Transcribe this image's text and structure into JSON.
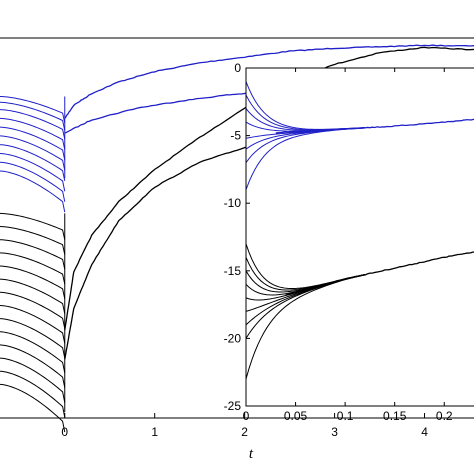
{
  "chart_data": [
    {
      "id": "main",
      "type": "line",
      "xlabel": "t",
      "ylabel": "",
      "xlim": [
        -0.72,
        4.55
      ],
      "ylim": [
        -25,
        1
      ],
      "grid": false,
      "xticks": [
        0,
        1,
        2,
        3,
        4
      ],
      "xtick_labels": [
        "0",
        "1",
        "2",
        "3",
        "4"
      ],
      "colors": {
        "blue": "#2020c8",
        "black": "#000000"
      },
      "negative_t_starts_blue": [
        -3.0,
        -3.4,
        -3.9,
        -4.5,
        -5.1,
        -5.7,
        -6.3,
        -6.9,
        -7.5,
        -8.1
      ],
      "negative_t_starts_black": [
        -11.0,
        -11.9,
        -12.8,
        -13.7,
        -14.6,
        -15.5,
        -16.4,
        -17.3,
        -18.2,
        -19.1,
        -20.0,
        -20.9,
        -21.8,
        -22.7
      ],
      "positive_t_blue_upper": {
        "x": [
          0,
          0.1,
          0.3,
          0.6,
          1.0,
          1.5,
          2.0,
          2.5,
          3.0,
          3.5,
          4.0,
          4.55
        ],
        "y": [
          -4.5,
          -3.6,
          -2.8,
          -2.0,
          -1.3,
          -0.7,
          -0.3,
          0.1,
          0.3,
          0.4,
          0.5,
          0.45
        ]
      },
      "positive_t_blue_lower": {
        "x": [
          0,
          0.3,
          0.8,
          1.3,
          1.8,
          2.2
        ],
        "y": [
          -5.5,
          -4.6,
          -3.8,
          -3.3,
          -2.9,
          -2.7
        ]
      },
      "positive_t_black_upper": {
        "x": [
          0,
          0.1,
          0.3,
          0.6,
          1.0,
          1.5,
          2.0,
          2.5,
          3.0,
          3.5,
          4.0,
          4.55
        ],
        "y": [
          -19.0,
          -15.0,
          -12.5,
          -10.2,
          -8.0,
          -5.8,
          -3.8,
          -2.0,
          -0.8,
          0.0,
          0.35,
          0.2
        ]
      },
      "positive_t_black_lower": {
        "x": [
          0,
          0.1,
          0.3,
          0.6,
          1.0,
          1.5,
          2.0,
          2.2
        ],
        "y": [
          -21.0,
          -17.5,
          -14.5,
          -11.5,
          -9.2,
          -7.5,
          -6.5,
          -6.0
        ]
      }
    },
    {
      "id": "inset",
      "type": "line",
      "xlabel": "",
      "ylabel": "",
      "xlim": [
        0,
        0.23
      ],
      "ylim": [
        -25,
        0
      ],
      "grid": false,
      "xticks": [
        0,
        0.05,
        0.1,
        0.15,
        0.2
      ],
      "xtick_labels": [
        "0",
        "0.05",
        "0.1",
        "0.15",
        "0.2"
      ],
      "yticks": [
        0,
        -5,
        -10,
        -15,
        -20,
        -25
      ],
      "ytick_labels": [
        "0",
        "-5",
        "-10",
        "-15",
        "-20",
        "-25"
      ],
      "blue_merge_line": {
        "x": [
          0.03,
          0.06,
          0.1,
          0.15,
          0.2,
          0.23
        ],
        "y": [
          -4.8,
          -4.7,
          -4.5,
          -4.3,
          -4.0,
          -3.8
        ]
      },
      "black_merge_line": {
        "x": [
          0.04,
          0.07,
          0.1,
          0.15,
          0.2,
          0.23
        ],
        "y": [
          -16.8,
          -16.2,
          -15.6,
          -14.8,
          -14.0,
          -13.6
        ]
      },
      "blue_starts": [
        -1.0,
        -2.0,
        -3.0,
        -4.0,
        -5.2,
        -6.0,
        -7.0,
        -9.0
      ],
      "black_starts": [
        -13.0,
        -14.0,
        -15.0,
        -16.0,
        -17.0,
        -18.0,
        -19.0,
        -20.0,
        -23.0
      ]
    }
  ]
}
